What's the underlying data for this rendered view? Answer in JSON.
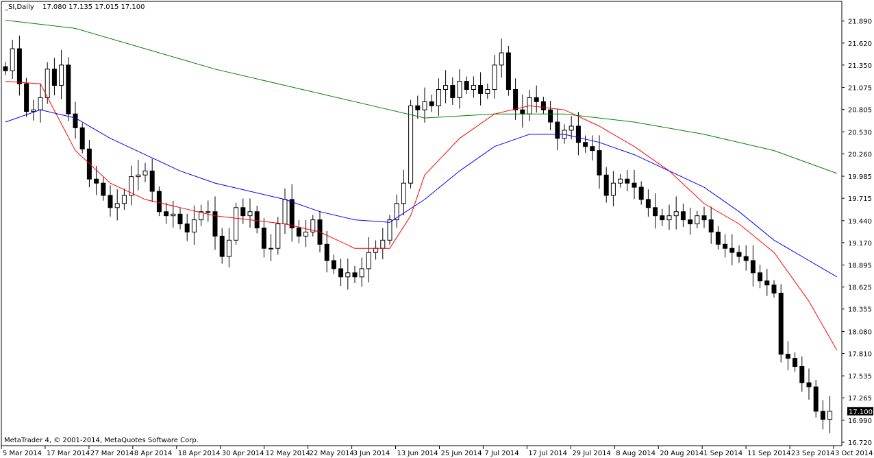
{
  "header": {
    "symbol": "_SI,Daily",
    "ohlc": "17.080 17.135 17.015 17.100"
  },
  "footer": {
    "copyright": "MetaTrader 4, © 2001-2014, MetaQuotes Software Corp."
  },
  "colors": {
    "background": "#ffffff",
    "candle": "#000000",
    "ma_fast": "#ff0000",
    "ma_mid": "#0000ff",
    "ma_slow": "#008000"
  },
  "chart_data": {
    "type": "candlestick",
    "title": "_SI,Daily",
    "ylim": [
      16.72,
      21.98
    ],
    "grid": false,
    "current_price": "17.100",
    "y_ticks": [
      "21.890",
      "21.620",
      "21.350",
      "21.075",
      "20.805",
      "20.530",
      "20.260",
      "19.985",
      "19.715",
      "19.440",
      "19.170",
      "18.895",
      "18.625",
      "18.355",
      "18.080",
      "17.810",
      "17.535",
      "17.265",
      "16.990",
      "16.720"
    ],
    "x_ticks": [
      "5 Mar 2014",
      "17 Mar 2014",
      "27 Mar 2014",
      "8 Apr 2014",
      "18 Apr 2014",
      "30 Apr 2014",
      "12 May 2014",
      "22 May 2014",
      "3 Jun 2014",
      "13 Jun 2014",
      "25 Jun 2014",
      "7 Jul 2014",
      "17 Jul 2014",
      "29 Jul 2014",
      "8 Aug 2014",
      "20 Aug 2014",
      "1 Sep 2014",
      "11 Sep 2014",
      "23 Sep 2014",
      "3 Oct 2014"
    ],
    "close": [
      21.28,
      21.55,
      21.12,
      20.78,
      20.8,
      20.95,
      21.3,
      21.1,
      21.35,
      20.75,
      20.58,
      20.32,
      19.95,
      19.9,
      19.75,
      19.6,
      19.65,
      19.75,
      19.98,
      20.0,
      20.05,
      19.8,
      19.55,
      19.5,
      19.52,
      19.4,
      19.3,
      19.45,
      19.55,
      19.55,
      19.25,
      19.0,
      19.2,
      19.6,
      19.5,
      19.55,
      19.35,
      19.1,
      19.1,
      19.4,
      19.7,
      19.35,
      19.25,
      19.3,
      19.45,
      19.15,
      18.95,
      18.85,
      18.75,
      18.8,
      18.75,
      18.85,
      19.05,
      19.1,
      19.2,
      19.45,
      19.65,
      19.9,
      20.85,
      20.8,
      20.9,
      20.85,
      21.05,
      21.1,
      20.95,
      21.15,
      21.05,
      21.1,
      21.0,
      21.05,
      21.35,
      21.5,
      21.05,
      20.8,
      20.75,
      20.95,
      20.9,
      20.8,
      20.65,
      20.45,
      20.55,
      20.6,
      20.4,
      20.35,
      20.3,
      20.0,
      19.75,
      19.9,
      19.95,
      19.9,
      19.85,
      19.7,
      19.6,
      19.5,
      19.45,
      19.5,
      19.55,
      19.45,
      19.4,
      19.5,
      19.45,
      19.3,
      19.15,
      19.1,
      19.05,
      19.0,
      18.95,
      18.8,
      18.7,
      18.65,
      18.55,
      17.8,
      17.75,
      17.65,
      17.45,
      17.4,
      17.1,
      17.0,
      17.1
    ],
    "series": [
      {
        "name": "",
        "x": [
          0,
          5,
          10,
          15,
          20,
          25,
          30,
          35,
          40,
          45,
          50,
          55,
          58,
          60,
          65,
          70,
          75,
          80,
          85,
          90,
          95,
          100,
          105,
          110,
          115,
          119
        ],
        "y": [
          21.15,
          21.12,
          20.3,
          19.9,
          19.7,
          19.6,
          19.5,
          19.45,
          19.4,
          19.3,
          19.1,
          19.1,
          19.5,
          20.0,
          20.45,
          20.75,
          20.85,
          20.8,
          20.6,
          20.35,
          20.05,
          19.65,
          19.4,
          19.05,
          18.45,
          17.85
        ]
      },
      {
        "name": "",
        "x": [
          0,
          5,
          10,
          15,
          20,
          25,
          30,
          35,
          40,
          45,
          50,
          55,
          60,
          65,
          70,
          75,
          80,
          85,
          90,
          95,
          100,
          105,
          110,
          115,
          119
        ],
        "y": [
          20.65,
          20.8,
          20.7,
          20.45,
          20.25,
          20.05,
          19.9,
          19.8,
          19.7,
          19.55,
          19.45,
          19.42,
          19.7,
          20.05,
          20.35,
          20.5,
          20.5,
          20.4,
          20.25,
          20.05,
          19.85,
          19.55,
          19.2,
          18.95,
          18.75
        ]
      },
      {
        "name": "",
        "x": [
          0,
          10,
          20,
          30,
          40,
          50,
          60,
          70,
          80,
          90,
          100,
          110,
          119
        ],
        "y": [
          21.9,
          21.8,
          21.55,
          21.3,
          21.1,
          20.9,
          20.7,
          20.75,
          20.75,
          20.65,
          20.5,
          20.3,
          20.02
        ]
      }
    ]
  }
}
